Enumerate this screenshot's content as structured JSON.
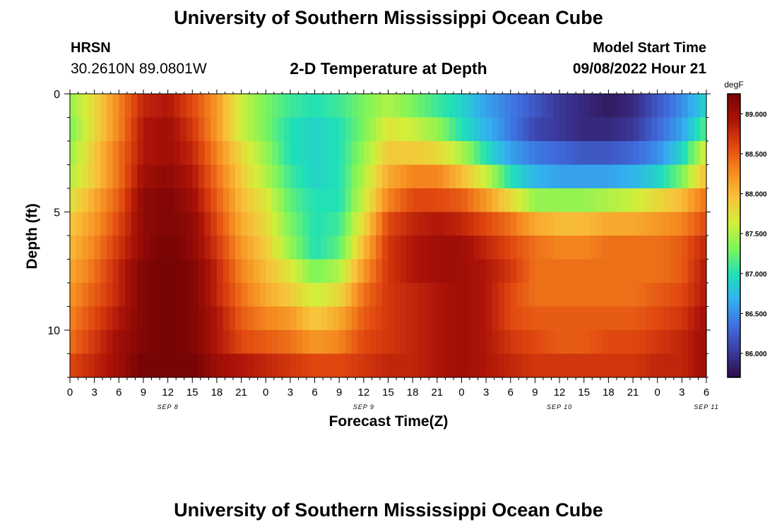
{
  "header": {
    "title": "University of Southern Mississippi Ocean Cube",
    "station": "HRSN",
    "coordinates": "30.2610N  89.0801W",
    "subtitle": "2-D Temperature at Depth",
    "model_label": "Model Start Time",
    "model_time": "09/08/2022 Hour 21"
  },
  "footer": {
    "title": "University of Southern Mississippi Ocean Cube"
  },
  "chart_data": {
    "type": "heatmap",
    "title": "2-D Temperature at Depth",
    "xlabel": "Forecast Time(Z)",
    "ylabel": "Depth (ft)",
    "ylim": [
      0,
      12
    ],
    "y_ticks": [
      0,
      5,
      10
    ],
    "x_tick_labels": [
      "0",
      "3",
      "6",
      "9",
      "12",
      "15",
      "18",
      "21",
      "0",
      "3",
      "6",
      "9",
      "12",
      "15",
      "18",
      "21",
      "0",
      "3",
      "6",
      "9",
      "12",
      "15",
      "18",
      "21",
      "0",
      "3",
      "6"
    ],
    "day_labels": [
      {
        "label": "SEP 8",
        "hour": 12
      },
      {
        "label": "SEP 9",
        "hour": 36
      },
      {
        "label": "SEP 10",
        "hour": 60
      },
      {
        "label": "SEP 11",
        "hour": 78
      }
    ],
    "hours_total": 78,
    "colorbar": {
      "unit": "degF",
      "min": 85.7,
      "max": 89.25,
      "ticks": [
        "86.000",
        "86.500",
        "87.000",
        "87.500",
        "88.000",
        "88.500",
        "89.000"
      ],
      "colors": [
        "#2d0b46",
        "#3b3b9e",
        "#3f6fe0",
        "#33b0f0",
        "#1fe0b8",
        "#7ef55a",
        "#d4ee3a",
        "#f8c23a",
        "#f5891f",
        "#e0460f",
        "#aa1208",
        "#780404"
      ]
    },
    "depth_rows_ft": [
      0.5,
      1.5,
      2.5,
      3.5,
      4.5,
      5.5,
      6.5,
      7.5,
      8.5,
      9.5,
      10.5,
      11.5
    ],
    "time_hours": [
      0,
      3,
      6,
      9,
      12,
      15,
      18,
      21,
      24,
      27,
      30,
      33,
      36,
      39,
      42,
      45,
      48,
      51,
      54,
      57,
      60,
      63,
      66,
      69,
      72,
      75,
      78
    ],
    "temperature_degF": [
      [
        87.4,
        87.8,
        88.3,
        88.8,
        88.9,
        88.6,
        88.2,
        87.6,
        87.3,
        87.1,
        87.0,
        87.1,
        87.3,
        87.5,
        87.3,
        87.1,
        86.9,
        86.6,
        86.4,
        86.2,
        86.0,
        85.9,
        85.8,
        85.9,
        86.2,
        86.5,
        86.9
      ],
      [
        87.3,
        87.8,
        88.3,
        88.9,
        89.0,
        88.7,
        88.2,
        87.6,
        87.3,
        87.0,
        86.9,
        87.0,
        87.3,
        87.7,
        87.6,
        87.4,
        87.0,
        86.7,
        86.4,
        86.1,
        86.0,
        85.9,
        85.9,
        86.0,
        86.3,
        86.6,
        87.2
      ],
      [
        87.4,
        87.9,
        88.4,
        88.9,
        89.0,
        88.8,
        88.3,
        87.8,
        87.4,
        87.0,
        86.9,
        87.0,
        87.4,
        87.9,
        87.9,
        87.8,
        87.5,
        87.0,
        86.6,
        86.4,
        86.3,
        86.2,
        86.2,
        86.3,
        86.5,
        86.9,
        87.7
      ],
      [
        87.5,
        87.9,
        88.4,
        89.0,
        89.1,
        88.9,
        88.4,
        87.9,
        87.5,
        87.1,
        86.9,
        87.0,
        87.5,
        88.1,
        88.3,
        88.3,
        88.0,
        87.6,
        87.0,
        86.7,
        86.6,
        86.6,
        86.6,
        86.7,
        86.9,
        87.3,
        88.0
      ],
      [
        87.7,
        88.1,
        88.5,
        89.1,
        89.2,
        89.0,
        88.5,
        88.0,
        87.7,
        87.2,
        87.0,
        87.0,
        87.6,
        88.3,
        88.6,
        88.6,
        88.5,
        88.2,
        87.8,
        87.4,
        87.4,
        87.4,
        87.5,
        87.6,
        87.8,
        88.0,
        88.4
      ],
      [
        87.9,
        88.2,
        88.6,
        89.1,
        89.2,
        89.1,
        88.6,
        88.1,
        87.8,
        87.3,
        87.0,
        87.1,
        87.8,
        88.6,
        88.8,
        88.9,
        88.8,
        88.6,
        88.4,
        88.1,
        88.0,
        88.0,
        88.1,
        88.1,
        88.2,
        88.3,
        88.6
      ],
      [
        88.0,
        88.3,
        88.7,
        89.1,
        89.3,
        89.1,
        88.7,
        88.2,
        87.9,
        87.4,
        87.0,
        87.2,
        88.0,
        88.7,
        88.9,
        89.0,
        89.0,
        88.8,
        88.6,
        88.4,
        88.3,
        88.3,
        88.4,
        88.4,
        88.4,
        88.5,
        88.8
      ],
      [
        88.1,
        88.4,
        88.8,
        89.2,
        89.3,
        89.2,
        88.8,
        88.3,
        88.0,
        87.7,
        87.3,
        87.5,
        88.2,
        88.7,
        88.9,
        89.0,
        89.0,
        88.9,
        88.7,
        88.4,
        88.4,
        88.4,
        88.4,
        88.4,
        88.4,
        88.5,
        88.9
      ],
      [
        88.2,
        88.5,
        88.8,
        89.2,
        89.3,
        89.2,
        88.8,
        88.4,
        88.1,
        87.9,
        87.6,
        87.8,
        88.4,
        88.7,
        88.8,
        88.9,
        89.0,
        88.9,
        88.6,
        88.4,
        88.4,
        88.4,
        88.4,
        88.4,
        88.5,
        88.6,
        88.9
      ],
      [
        88.3,
        88.6,
        88.9,
        89.2,
        89.3,
        89.2,
        88.9,
        88.5,
        88.3,
        88.2,
        87.9,
        88.1,
        88.5,
        88.7,
        88.8,
        88.9,
        89.0,
        88.9,
        88.6,
        88.5,
        88.5,
        88.5,
        88.5,
        88.5,
        88.6,
        88.7,
        89.0
      ],
      [
        88.4,
        88.7,
        89.0,
        89.2,
        89.3,
        89.2,
        88.9,
        88.6,
        88.5,
        88.4,
        88.2,
        88.3,
        88.6,
        88.7,
        88.8,
        88.9,
        89.0,
        88.9,
        88.7,
        88.6,
        88.5,
        88.5,
        88.6,
        88.6,
        88.7,
        88.8,
        89.0
      ],
      [
        88.6,
        88.8,
        89.0,
        89.3,
        89.3,
        89.3,
        89.0,
        88.9,
        88.8,
        88.7,
        88.6,
        88.6,
        88.7,
        88.8,
        88.8,
        88.9,
        89.0,
        88.9,
        88.8,
        88.7,
        88.7,
        88.7,
        88.7,
        88.7,
        88.8,
        88.8,
        89.0
      ]
    ]
  }
}
